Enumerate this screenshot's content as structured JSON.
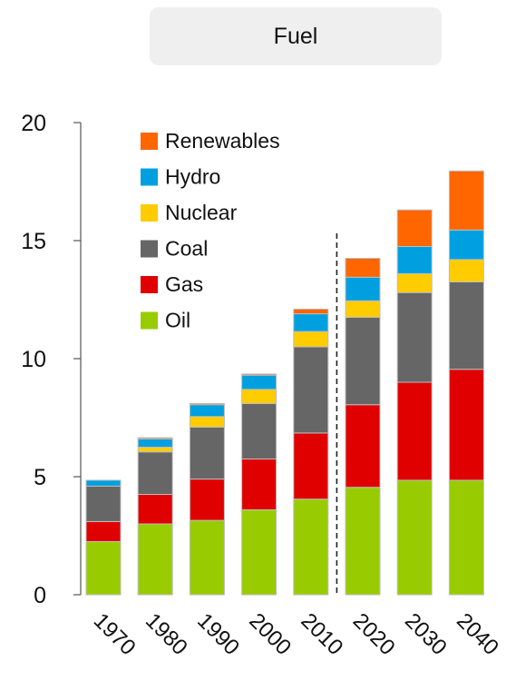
{
  "header": {
    "label": "Fuel"
  },
  "chart_data": {
    "type": "bar",
    "stacked": true,
    "categories": [
      "1970",
      "1980",
      "1990",
      "2000",
      "2010",
      "2020",
      "2030",
      "2040"
    ],
    "ylim": [
      0,
      20
    ],
    "yticks": [
      0,
      5,
      10,
      15,
      20
    ],
    "divider_after_category": "2010",
    "legend_position": "top-left",
    "series": [
      {
        "name": "Oil",
        "color": "#99cc00",
        "values": [
          2.25,
          3.0,
          3.15,
          3.6,
          4.05,
          4.55,
          4.85,
          4.85
        ]
      },
      {
        "name": "Gas",
        "color": "#e00000",
        "values": [
          0.85,
          1.25,
          1.75,
          2.15,
          2.8,
          3.5,
          4.15,
          4.7
        ]
      },
      {
        "name": "Coal",
        "color": "#666666",
        "values": [
          1.5,
          1.8,
          2.2,
          2.35,
          3.65,
          3.7,
          3.8,
          3.7
        ]
      },
      {
        "name": "Nuclear",
        "color": "#ffcc00",
        "values": [
          0.0,
          0.2,
          0.45,
          0.6,
          0.65,
          0.7,
          0.8,
          0.95
        ]
      },
      {
        "name": "Hydro",
        "color": "#00a0e0",
        "values": [
          0.25,
          0.35,
          0.5,
          0.6,
          0.75,
          1.0,
          1.15,
          1.25
        ]
      },
      {
        "name": "Renewables",
        "color": "#ff6600",
        "values": [
          0.0,
          0.05,
          0.05,
          0.05,
          0.2,
          0.8,
          1.55,
          2.5
        ]
      }
    ]
  }
}
